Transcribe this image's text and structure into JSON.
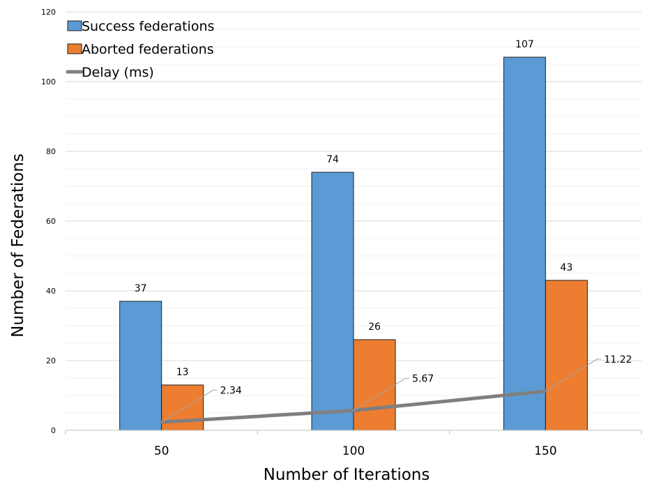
{
  "chart_data": {
    "type": "bar",
    "title": "",
    "xlabel": "Number of Iterations",
    "ylabel": "Number of Federations",
    "categories": [
      "50",
      "100",
      "150"
    ],
    "ylim": [
      0,
      120
    ],
    "yticks": [
      0,
      20,
      40,
      60,
      80,
      100,
      120
    ],
    "grid": true,
    "legend_position": "top-left",
    "series": [
      {
        "name": "Success federations",
        "kind": "bar",
        "color": "#5b9bd5",
        "values": [
          37,
          74,
          107
        ],
        "labels": [
          "37",
          "74",
          "107"
        ]
      },
      {
        "name": "Aborted federations",
        "kind": "bar",
        "color": "#ed7d31",
        "values": [
          13,
          26,
          43
        ],
        "labels": [
          "13",
          "26",
          "43"
        ]
      },
      {
        "name": "Delay (ms)",
        "kind": "line",
        "color": "#7f7f7f",
        "values": [
          2.34,
          5.67,
          11.22
        ],
        "labels": [
          "2.34",
          "5.67",
          "11.22"
        ]
      }
    ]
  }
}
